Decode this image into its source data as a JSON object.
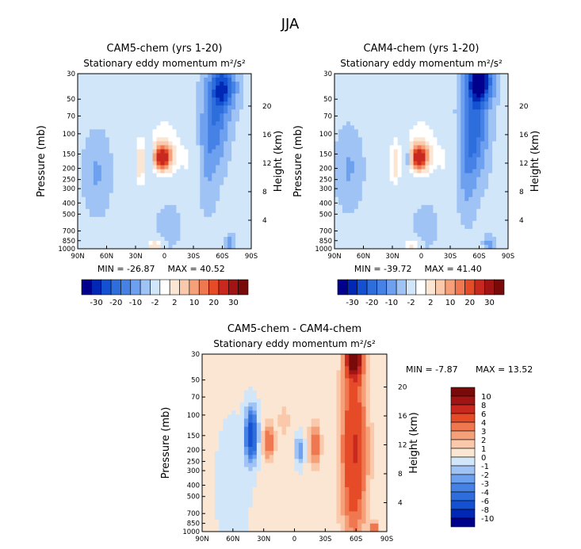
{
  "figure": {
    "title": "JJA"
  },
  "chart_data": [
    {
      "type": "contour",
      "title": "CAM5-chem (yrs 1-20)",
      "subtitle": "Stationary eddy momentum m²/s²",
      "xlabel": "",
      "ylabel": "Pressure (mb)",
      "ylabel_right": "Height (km)",
      "x_ticks": [
        "90N",
        "60N",
        "30N",
        "0",
        "30S",
        "60S",
        "90S"
      ],
      "x_values": [
        90,
        60,
        30,
        0,
        -30,
        -60,
        -90
      ],
      "y_ticks": [
        "30",
        "50",
        "70",
        "100",
        "150",
        "200",
        "250",
        "300",
        "400",
        "500",
        "700",
        "850",
        "1000"
      ],
      "y_values": [
        30,
        50,
        70,
        100,
        150,
        200,
        250,
        300,
        400,
        500,
        700,
        850,
        1000
      ],
      "y_right_ticks": [
        "20",
        "16",
        "12",
        "8",
        "4"
      ],
      "y_right_values": [
        20,
        16,
        12,
        8,
        4
      ],
      "xlim": [
        90,
        -90
      ],
      "ylim_pressure": [
        1000,
        30
      ],
      "min_label": "MIN = -26.87",
      "max_label": "MAX = 40.52",
      "min": -26.87,
      "max": 40.52,
      "features": [
        {
          "lat": 2,
          "p": 160,
          "value": 38,
          "wlat": 6,
          "wlp": 0.16
        },
        {
          "lat": 0,
          "p": 130,
          "value": 6,
          "wlat": 12,
          "wlp": 0.5
        },
        {
          "lat": 25,
          "p": 180,
          "value": 9,
          "wlat": 4,
          "wlp": 0.35
        },
        {
          "lat": 15,
          "p": 160,
          "value": -5,
          "wlat": 2.5,
          "wlp": 0.14
        },
        {
          "lat": 70,
          "p": 220,
          "value": -4,
          "wlat": 8,
          "wlp": 0.45
        },
        {
          "lat": -25,
          "p": 180,
          "value": 3,
          "wlat": 8,
          "wlp": 0.45
        },
        {
          "lat": -60,
          "p": 40,
          "value": -25,
          "wlat": 8,
          "wlp": 0.3
        },
        {
          "lat": -52,
          "p": 80,
          "value": -12,
          "wlat": 8,
          "wlp": 0.5
        },
        {
          "lat": -45,
          "p": 180,
          "value": -4,
          "wlat": 6,
          "wlp": 0.55
        },
        {
          "lat": -5,
          "p": 600,
          "value": -2,
          "wlat": 8,
          "wlp": 0.3
        },
        {
          "lat": 10,
          "p": 950,
          "value": 10,
          "wlat": 5,
          "wlp": 0.08
        },
        {
          "lat": -68,
          "p": 900,
          "value": -6,
          "wlat": 3,
          "wlp": 0.1
        }
      ],
      "base": -1.5
    },
    {
      "type": "contour",
      "title": "CAM4-chem (yrs 1-20)",
      "subtitle": "Stationary eddy momentum m²/s²",
      "xlabel": "",
      "ylabel": "Pressure (mb)",
      "ylabel_right": "Height (km)",
      "x_ticks": [
        "90N",
        "60N",
        "30N",
        "0",
        "30S",
        "60S",
        "90S"
      ],
      "x_values": [
        90,
        60,
        30,
        0,
        -30,
        -60,
        -90
      ],
      "y_ticks": [
        "30",
        "50",
        "70",
        "100",
        "150",
        "200",
        "250",
        "300",
        "400",
        "500",
        "700",
        "850",
        "1000"
      ],
      "y_values": [
        30,
        50,
        70,
        100,
        150,
        200,
        250,
        300,
        400,
        500,
        700,
        850,
        1000
      ],
      "y_right_ticks": [
        "20",
        "16",
        "12",
        "8",
        "4"
      ],
      "y_right_values": [
        20,
        16,
        12,
        8,
        4
      ],
      "xlim": [
        90,
        -90
      ],
      "ylim_pressure": [
        1000,
        30
      ],
      "min_label": "MIN = -39.72",
      "max_label": "MAX = 41.40",
      "min": -39.72,
      "max": 41.4,
      "features": [
        {
          "lat": 2,
          "p": 160,
          "value": 39,
          "wlat": 6,
          "wlp": 0.16
        },
        {
          "lat": 0,
          "p": 130,
          "value": 6,
          "wlat": 12,
          "wlp": 0.5
        },
        {
          "lat": 27,
          "p": 180,
          "value": 8,
          "wlat": 4,
          "wlp": 0.35
        },
        {
          "lat": 14,
          "p": 160,
          "value": -9,
          "wlat": 2.5,
          "wlp": 0.16
        },
        {
          "lat": 75,
          "p": 200,
          "value": -4,
          "wlat": 8,
          "wlp": 0.45
        },
        {
          "lat": -25,
          "p": 180,
          "value": 3,
          "wlat": 8,
          "wlp": 0.45
        },
        {
          "lat": -60,
          "p": 35,
          "value": -38,
          "wlat": 8,
          "wlp": 0.3
        },
        {
          "lat": -55,
          "p": 90,
          "value": -16,
          "wlat": 8,
          "wlp": 0.55
        },
        {
          "lat": -48,
          "p": 200,
          "value": -6,
          "wlat": 6,
          "wlp": 0.55
        },
        {
          "lat": -5,
          "p": 600,
          "value": -2,
          "wlat": 8,
          "wlp": 0.3
        },
        {
          "lat": 10,
          "p": 950,
          "value": 8,
          "wlat": 5,
          "wlp": 0.08
        },
        {
          "lat": -70,
          "p": 900,
          "value": -6,
          "wlat": 3,
          "wlp": 0.1
        }
      ],
      "base": -1.5
    },
    {
      "type": "contour",
      "title": "CAM5-chem - CAM4-chem",
      "subtitle": "Stationary eddy momentum m²/s²",
      "xlabel": "",
      "ylabel": "Pressure (mb)",
      "ylabel_right": "Height (km)",
      "x_ticks": [
        "90N",
        "60N",
        "30N",
        "0",
        "30S",
        "60S",
        "90S"
      ],
      "x_values": [
        90,
        60,
        30,
        0,
        -30,
        -60,
        -90
      ],
      "y_ticks": [
        "30",
        "50",
        "70",
        "100",
        "150",
        "200",
        "250",
        "300",
        "400",
        "500",
        "700",
        "850",
        "1000"
      ],
      "y_values": [
        30,
        50,
        70,
        100,
        150,
        200,
        250,
        300,
        400,
        500,
        700,
        850,
        1000
      ],
      "y_right_ticks": [
        "20",
        "16",
        "12",
        "8",
        "4"
      ],
      "y_right_values": [
        20,
        16,
        12,
        8,
        4
      ],
      "xlim": [
        90,
        -90
      ],
      "ylim_pressure": [
        1000,
        30
      ],
      "min_label": "MIN =  -7.87",
      "max_label": "MAX =  13.52",
      "min": -7.87,
      "max": 13.52,
      "features": [
        {
          "lat": -58,
          "p": 33,
          "value": 12,
          "wlat": 5,
          "wlp": 0.25
        },
        {
          "lat": -58,
          "p": 200,
          "value": 6,
          "wlat": 9,
          "wlp": 1.3
        },
        {
          "lat": 42,
          "p": 150,
          "value": -8,
          "wlat": 4,
          "wlp": 0.35
        },
        {
          "lat": 25,
          "p": 170,
          "value": 4,
          "wlat": 4,
          "wlp": 0.25
        },
        {
          "lat": -20,
          "p": 180,
          "value": 4,
          "wlat": 4,
          "wlp": 0.3
        },
        {
          "lat": -5,
          "p": 200,
          "value": -3,
          "wlat": 3,
          "wlp": 0.2
        },
        {
          "lat": 10,
          "p": 110,
          "value": 1.5,
          "wlat": 4,
          "wlp": 0.25
        },
        {
          "lat": 60,
          "p": 400,
          "value": -1,
          "wlat": 10,
          "wlp": 0.8
        },
        {
          "lat": -78,
          "p": 950,
          "value": 4,
          "wlat": 3,
          "wlp": 0.1
        }
      ],
      "base": 0.2
    }
  ],
  "colorbar_main": {
    "labels": [
      "-30",
      "-20",
      "-10",
      "-2",
      "2",
      "10",
      "20",
      "30"
    ],
    "levels": [
      -30,
      -25,
      -20,
      -15,
      -10,
      -5,
      -2,
      2,
      5,
      10,
      15,
      20,
      25,
      30
    ],
    "colors": [
      "#00008c",
      "#0028b4",
      "#1450d2",
      "#2d6edc",
      "#4682e6",
      "#6ea0f0",
      "#a0c3f5",
      "#d2e6fa",
      "#ffffff",
      "#fae6d2",
      "#fac8aa",
      "#f5a078",
      "#f07850",
      "#e64b28",
      "#c8281e",
      "#a01414",
      "#780a0a"
    ]
  },
  "colorbar_diff": {
    "labels": [
      "10",
      "8",
      "6",
      "4",
      "3",
      "2",
      "1",
      "0",
      "-1",
      "-2",
      "-3",
      "-4",
      "-6",
      "-8",
      "-10"
    ],
    "levels": [
      -10,
      -8,
      -6,
      -4,
      -3,
      -2,
      -1,
      0,
      1,
      2,
      3,
      4,
      6,
      8,
      10
    ],
    "colors": [
      "#00008c",
      "#0028b4",
      "#1450d2",
      "#2d6edc",
      "#4682e6",
      "#6ea0f0",
      "#a0c3f5",
      "#d2e6fa",
      "#fae6d2",
      "#fac8aa",
      "#f5a078",
      "#f07850",
      "#e64b28",
      "#c8281e",
      "#a01414",
      "#780a0a"
    ]
  }
}
